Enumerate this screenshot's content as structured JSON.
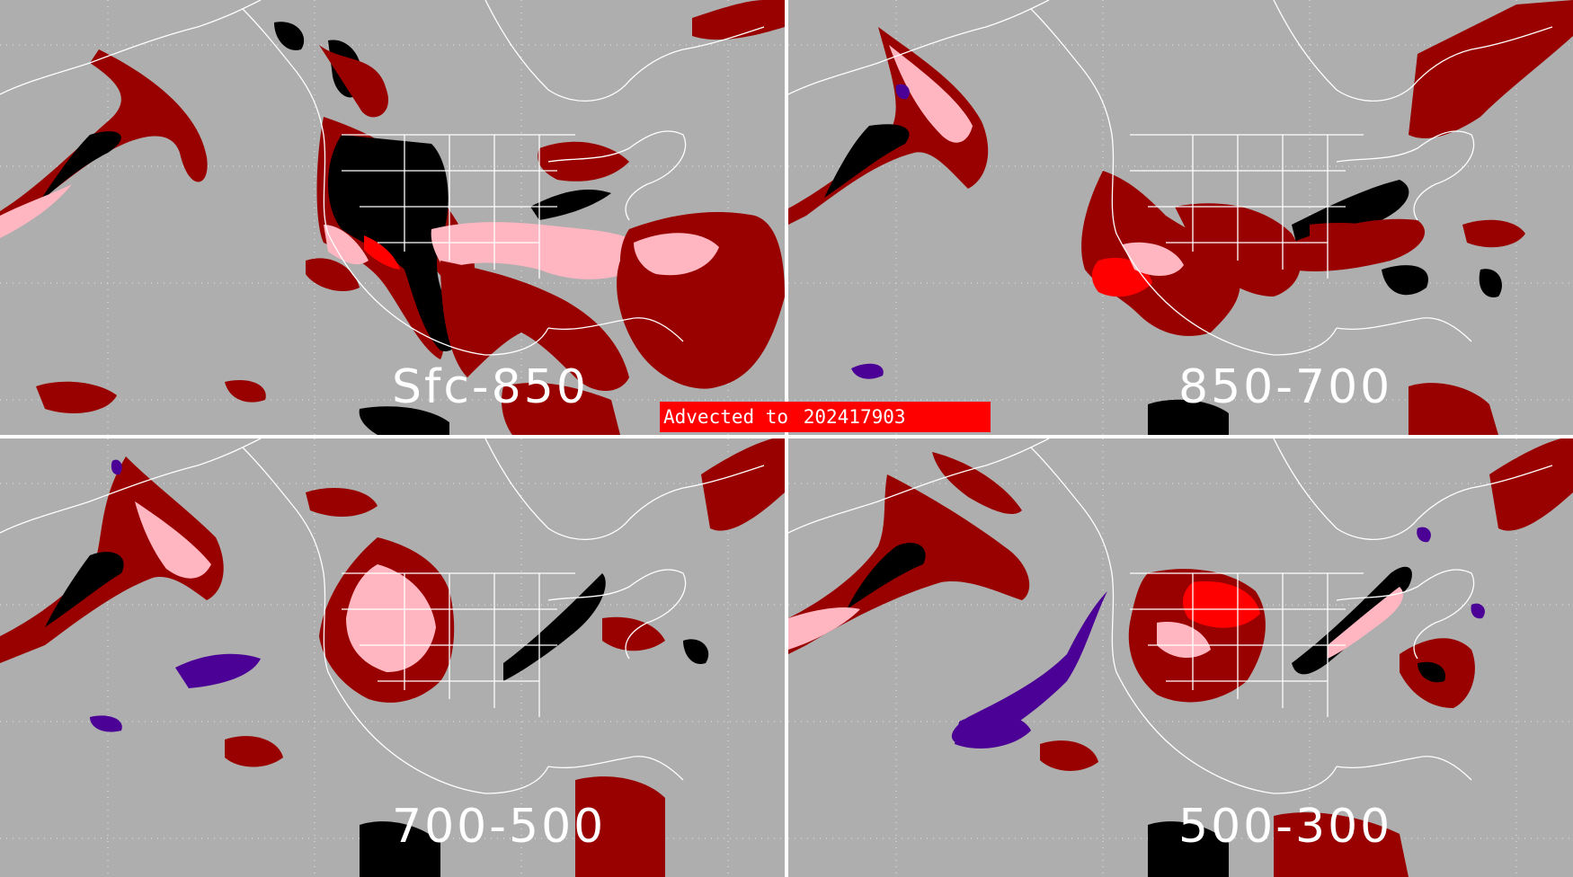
{
  "panels": [
    {
      "id": "sfc-850",
      "label": "Sfc-850"
    },
    {
      "id": "850-700",
      "label": "850-700"
    },
    {
      "id": "700-500",
      "label": "700-500"
    },
    {
      "id": "500-300",
      "label": "500-300"
    }
  ],
  "banner": {
    "prefix": "Advected to",
    "time": "202417903"
  },
  "colors": {
    "background": "#aeaeae",
    "divider": "#ffffff",
    "coastline": "#ffffff",
    "dark_red": "#990000",
    "pink": "#ffb6c1",
    "bright_red": "#ff0000",
    "black": "#000000",
    "purple": "#4b0096",
    "banner": "#ff0000"
  }
}
